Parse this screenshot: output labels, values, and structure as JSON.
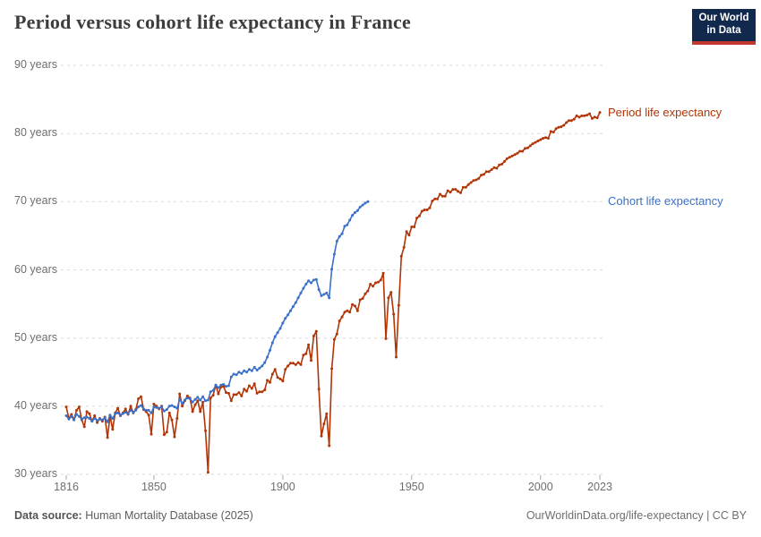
{
  "header": {
    "title": "Period versus cohort life expectancy in France",
    "logo": {
      "line1": "Our World",
      "line2": "in Data",
      "bg_color": "#12294e",
      "accent_color": "#c1362e"
    }
  },
  "footer": {
    "source_label": "Data source:",
    "source_value": " Human Mortality Database (2025)",
    "right_text": "OurWorldinData.org/life-expectancy | CC BY"
  },
  "chart_data": {
    "type": "line",
    "title": "Period versus cohort life expectancy in France",
    "xlabel": "",
    "ylabel": "",
    "grid": "horizontal dashed",
    "legend_position": "right-of-line-ends",
    "x": {
      "min": 1816,
      "max": 2023,
      "ticks": [
        1816,
        1850,
        1900,
        1950,
        2000,
        2023
      ]
    },
    "y": {
      "min": 30,
      "max": 90,
      "tick_step": 10,
      "tick_suffix": " years"
    },
    "series": [
      {
        "name": "Period life expectancy",
        "color": "#b13507",
        "start_year": 1816,
        "values": [
          39.9,
          38.2,
          38.8,
          38.0,
          39.4,
          39.9,
          38.0,
          37.0,
          39.2,
          38.9,
          37.8,
          38.6,
          37.6,
          38.2,
          37.8,
          38.4,
          35.4,
          38.6,
          36.6,
          39.0,
          39.7,
          38.6,
          39.0,
          39.6,
          38.8,
          40.0,
          39.0,
          39.5,
          41.1,
          41.4,
          39.5,
          39.2,
          38.7,
          35.9,
          40.3,
          40.0,
          39.6,
          40.0,
          35.8,
          36.2,
          39.0,
          38.0,
          35.5,
          38.2,
          41.8,
          40.0,
          40.8,
          41.5,
          41.2,
          39.2,
          40.2,
          40.8,
          39.2,
          40.6,
          36.4,
          30.3,
          41.2,
          41.6,
          43.1,
          41.8,
          42.8,
          42.9,
          42.0,
          41.9,
          40.8,
          41.7,
          41.7,
          42.0,
          41.5,
          42.5,
          42.2,
          43.0,
          42.6,
          43.3,
          41.9,
          42.1,
          42.1,
          42.4,
          43.8,
          43.5,
          44.7,
          45.4,
          44.2,
          44.0,
          43.7,
          45.4,
          45.9,
          46.3,
          46.3,
          46.1,
          46.4,
          46.1,
          47.5,
          47.7,
          49.0,
          46.7,
          50.3,
          51.0,
          42.5,
          35.6,
          37.4,
          38.9,
          34.2,
          45.5,
          49.8,
          50.6,
          52.5,
          53.1,
          53.8,
          54.0,
          53.8,
          54.9,
          54.7,
          54.0,
          55.6,
          55.8,
          56.5,
          56.9,
          57.9,
          57.6,
          58.1,
          58.2,
          58.5,
          59.5,
          49.9,
          55.9,
          56.7,
          53.5,
          47.2,
          54.8,
          62.0,
          63.3,
          65.6,
          65.1,
          66.3,
          66.3,
          67.6,
          67.9,
          68.6,
          68.8,
          68.8,
          69.1,
          70.1,
          70.4,
          70.4,
          71.1,
          70.8,
          70.8,
          71.6,
          71.4,
          71.8,
          71.8,
          71.5,
          71.3,
          72.1,
          72.1,
          72.5,
          72.8,
          73.1,
          73.2,
          73.4,
          73.9,
          74.0,
          74.4,
          74.4,
          74.7,
          75.0,
          74.9,
          75.4,
          75.5,
          75.9,
          76.3,
          76.5,
          76.7,
          76.9,
          77.1,
          77.4,
          77.4,
          77.8,
          77.9,
          78.2,
          78.5,
          78.7,
          78.9,
          79.1,
          79.3,
          79.4,
          79.3,
          80.3,
          80.2,
          80.7,
          80.9,
          81.0,
          81.2,
          81.6,
          81.9,
          81.9,
          82.1,
          82.6,
          82.4,
          82.6,
          82.6,
          82.7,
          82.9,
          82.2,
          82.4,
          82.3,
          83.1
        ]
      },
      {
        "name": "Cohort life expectancy",
        "color": "#3a70c8",
        "start_year": 1816,
        "values": [
          38.6,
          38.1,
          38.5,
          38.0,
          38.8,
          38.5,
          38.1,
          38.3,
          38.4,
          38.2,
          37.8,
          38.2,
          37.9,
          38.1,
          38.0,
          38.3,
          37.7,
          38.7,
          38.2,
          38.9,
          39.0,
          38.7,
          38.9,
          39.1,
          38.9,
          39.4,
          39.1,
          39.4,
          39.9,
          40.1,
          39.6,
          39.4,
          39.4,
          39.0,
          39.9,
          39.8,
          39.7,
          39.9,
          39.3,
          39.5,
          40.0,
          40.1,
          39.9,
          39.7,
          41.0,
          40.4,
          40.9,
          41.2,
          41.1,
          40.6,
          41.0,
          41.3,
          40.9,
          41.4,
          40.8,
          40.9,
          42.1,
          42.3,
          43.1,
          42.7,
          43.1,
          43.2,
          42.9,
          43.0,
          44.3,
          44.7,
          44.6,
          45.0,
          44.8,
          45.2,
          45.0,
          45.4,
          45.2,
          45.7,
          45.3,
          45.6,
          45.9,
          46.4,
          47.2,
          48.2,
          49.3,
          50.2,
          50.8,
          51.4,
          52.2,
          52.9,
          53.4,
          54.0,
          54.6,
          55.2,
          55.9,
          56.6,
          57.3,
          57.9,
          58.4,
          58.1,
          58.5,
          58.6,
          57.1,
          56.2,
          56.4,
          56.6,
          55.9,
          60.1,
          62.3,
          64.2,
          64.9,
          65.3,
          66.4,
          66.6,
          67.3,
          68.0,
          68.4,
          68.7,
          69.2,
          69.5,
          69.8,
          70.0
        ]
      }
    ]
  }
}
